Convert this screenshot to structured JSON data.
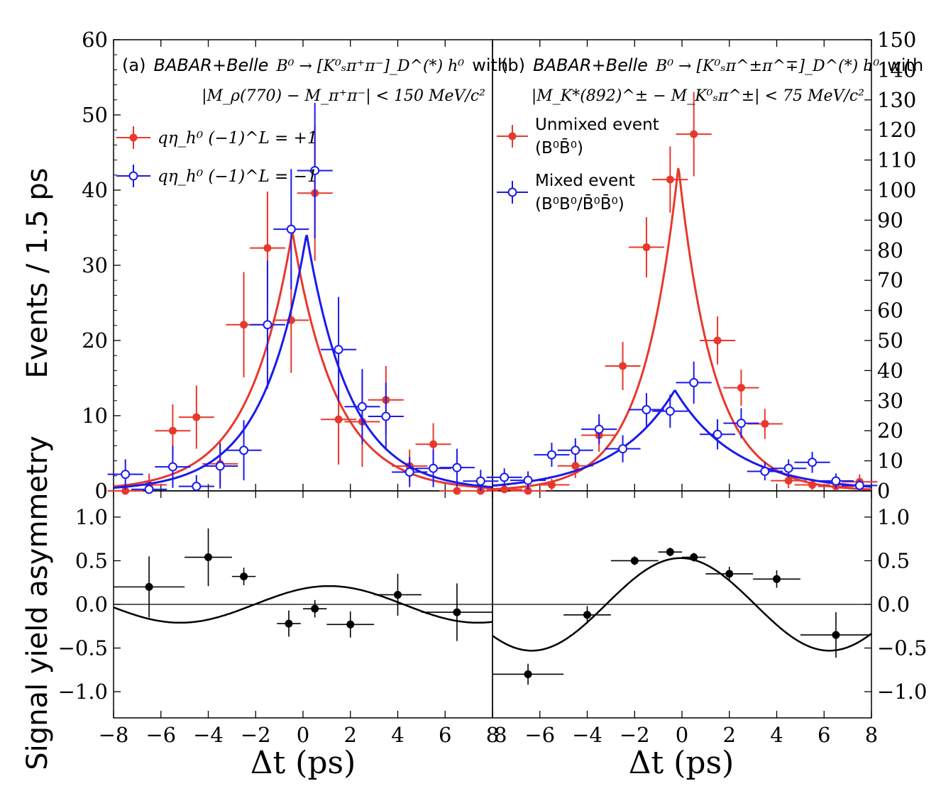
{
  "chart_data": {
    "type": "scatter",
    "x_label": "Δt (ps)",
    "xlim": [
      -8,
      8
    ],
    "xticks": [
      -8,
      -6,
      -4,
      -2,
      0,
      2,
      4,
      6,
      8
    ],
    "y_label_top": "Events / 1.5 ps",
    "y_label_bottom": "Signal yield asymmetry",
    "asym_ylim": [
      -1.3,
      1.3
    ],
    "asym_yticks": [
      "1.0",
      "0.5",
      "0.0",
      "−0.5",
      "−1.0"
    ],
    "panels": [
      {
        "id": "a",
        "label": "(a)",
        "experiment": "BABAR+Belle",
        "decay": "B⁰ → [K⁰ₛπ⁺π⁻]_D^(*) h⁰",
        "with_word": "with",
        "cut": "|M_ρ(770) − M_π⁺π⁻| < 150 MeV/c²",
        "ylim": [
          0,
          60
        ],
        "yticks": [
          0,
          10,
          20,
          30,
          40,
          50,
          60
        ],
        "legend": [
          {
            "name": "qη_h⁰ (−1)^L = +1",
            "color": "#e8382c",
            "marker": "filled"
          },
          {
            "name": "qη_h⁰ (−1)^L = −1",
            "color": "#1a1aee",
            "marker": "open"
          }
        ],
        "series": [
          {
            "name": "qη_h⁰ (−1)^L = +1",
            "color": "#e8382c",
            "marker": "filled",
            "x": [
              -7.5,
              -6.5,
              -5.5,
              -4.5,
              -3.5,
              -2.5,
              -1.5,
              -0.5,
              0.5,
              1.5,
              2.5,
              3.5,
              4.5,
              5.5,
              6.5,
              7.5
            ],
            "y": [
              0.0,
              0.8,
              8.0,
              9.8,
              3.6,
              22.1,
              32.3,
              22.7,
              39.6,
              9.5,
              9.2,
              12.1,
              3.3,
              6.2,
              0.0,
              0.0
            ],
            "yerr": [
              1.0,
              1.5,
              3.5,
              4.2,
              3.0,
              7.0,
              7.5,
              7.0,
              9.0,
              6.0,
              6.0,
              4.5,
              2.2,
              2.8,
              0.8,
              0.8
            ],
            "fit_mu": -0.45,
            "fit_tau": 1.85,
            "fit_amp": 34.5
          },
          {
            "name": "qη_h⁰ (−1)^L = −1",
            "color": "#1a1aee",
            "marker": "open",
            "x": [
              -7.5,
              -6.5,
              -5.5,
              -4.5,
              -3.5,
              -2.5,
              -1.5,
              -0.5,
              0.5,
              1.5,
              2.5,
              3.5,
              4.5,
              5.5,
              6.5,
              7.5
            ],
            "y": [
              2.2,
              0.2,
              3.2,
              0.6,
              3.3,
              5.4,
              22.1,
              34.8,
              42.6,
              18.8,
              11.2,
              9.9,
              2.5,
              3.0,
              3.1,
              1.3
            ],
            "yerr": [
              2.0,
              1.0,
              2.8,
              1.5,
              3.0,
              4.0,
              8.5,
              8.0,
              9.0,
              7.0,
              5.0,
              4.5,
              2.0,
              2.5,
              2.5,
              1.5
            ],
            "fit_mu": 0.15,
            "fit_tau": 1.85,
            "fit_amp": 34.2
          }
        ],
        "asymmetry": {
          "x": [
            -6.5,
            -4.0,
            -2.5,
            -0.6,
            0.5,
            2.0,
            4.0,
            6.5
          ],
          "y": [
            0.2,
            0.54,
            0.32,
            -0.22,
            -0.05,
            -0.23,
            0.11,
            -0.09
          ],
          "xerr": [
            1.5,
            1.0,
            0.5,
            0.5,
            0.5,
            1.0,
            1.0,
            1.5
          ],
          "yerr": [
            0.35,
            0.33,
            0.1,
            0.15,
            0.1,
            0.15,
            0.24,
            0.33
          ],
          "curve_amp": 0.21,
          "curve_phase": -0.55,
          "curve_omega": 0.5
        }
      },
      {
        "id": "b",
        "label": "(b)",
        "experiment": "BABAR+Belle",
        "decay": "B⁰ → [K⁰ₛπ^±π^∓]_D^(*) h⁰",
        "with_word": "with",
        "cut": "|M_K*(892)^± − M_K⁰ₛπ^±| < 75 MeV/c²",
        "ylim": [
          0,
          150
        ],
        "yticks": [
          0,
          10,
          20,
          30,
          40,
          50,
          60,
          70,
          80,
          90,
          100,
          110,
          120,
          130,
          140,
          150
        ],
        "legend": [
          {
            "name": "Unmixed event",
            "sub": "(B⁰B̄⁰)",
            "color": "#e8382c",
            "marker": "filled"
          },
          {
            "name": "Mixed event",
            "sub": "(B⁰B⁰/B̄⁰B̄⁰)",
            "color": "#1a1aee",
            "marker": "open"
          }
        ],
        "series": [
          {
            "name": "Unmixed event (B⁰B̄⁰)",
            "color": "#e8382c",
            "marker": "filled",
            "x": [
              -7.5,
              -6.5,
              -5.5,
              -4.5,
              -3.5,
              -2.5,
              -1.5,
              -0.5,
              0.5,
              1.5,
              2.5,
              3.5,
              4.5,
              5.5,
              6.5,
              7.5
            ],
            "y": [
              0.5,
              0.0,
              2.0,
              8.3,
              18.5,
              41.5,
              81.0,
              103.5,
              118.6,
              50.0,
              34.3,
              22.3,
              3.4,
              2.0,
              1.5,
              3.0
            ],
            "yerr": [
              1.2,
              1.0,
              2.0,
              4.0,
              5.5,
              8.0,
              10.0,
              11.0,
              14.0,
              8.0,
              6.0,
              5.0,
              2.5,
              2.0,
              1.8,
              2.5
            ],
            "fit_mu": -0.15,
            "fit_tau": 1.5,
            "fit_amp": 108.0
          },
          {
            "name": "Mixed event (B⁰B⁰/B̄⁰B̄⁰)",
            "color": "#1a1aee",
            "marker": "open",
            "x": [
              -7.5,
              -6.5,
              -5.5,
              -4.5,
              -3.5,
              -2.5,
              -1.5,
              -0.5,
              0.5,
              1.5,
              2.5,
              3.5,
              4.5,
              5.5,
              6.5,
              7.5
            ],
            "y": [
              4.5,
              3.5,
              12.0,
              13.5,
              20.5,
              14.0,
              27.0,
              26.5,
              36.0,
              18.8,
              22.5,
              6.5,
              7.5,
              9.5,
              3.3,
              1.8
            ],
            "yerr": [
              3.0,
              3.0,
              4.0,
              4.0,
              5.0,
              4.5,
              5.5,
              5.5,
              7.0,
              5.0,
              5.0,
              3.0,
              3.0,
              3.5,
              2.5,
              1.8
            ],
            "fit_mu": -0.3,
            "fit_tau": 2.6,
            "fit_amp": 33.5
          }
        ],
        "asymmetry": {
          "x": [
            -6.5,
            -4.0,
            -2.0,
            -0.5,
            0.5,
            2.0,
            4.0,
            6.5
          ],
          "y": [
            -0.8,
            -0.12,
            0.5,
            0.6,
            0.54,
            0.35,
            0.29,
            -0.35
          ],
          "xerr": [
            1.5,
            1.0,
            1.0,
            0.5,
            0.5,
            1.0,
            1.0,
            1.5
          ],
          "yerr": [
            0.12,
            0.1,
            0.05,
            0.05,
            0.05,
            0.08,
            0.1,
            0.26
          ],
          "curve_amp": 0.53,
          "curve_phase": 0.03,
          "curve_omega": 0.5
        }
      }
    ]
  }
}
